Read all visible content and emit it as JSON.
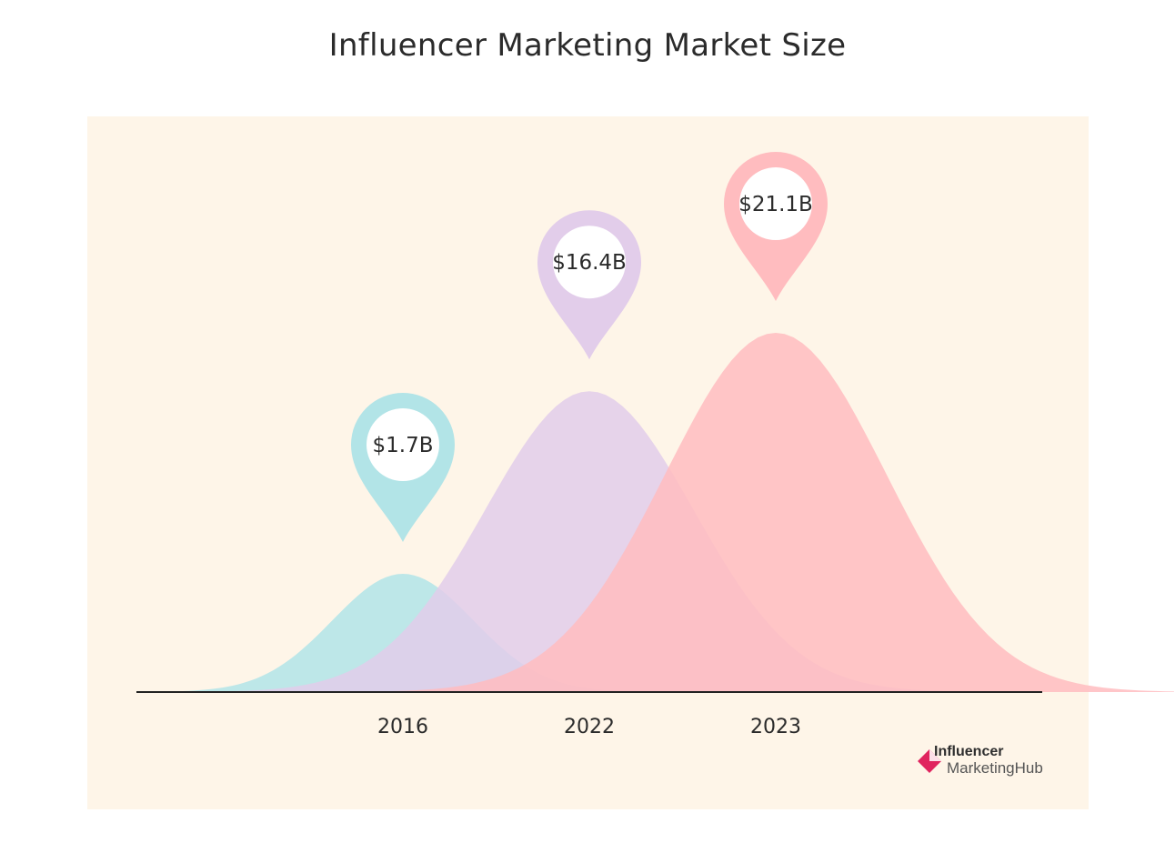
{
  "chart_data": {
    "type": "area",
    "title": "Influencer Marketing Market Size",
    "categories": [
      "2016",
      "2022",
      "2023"
    ],
    "values": [
      1.7,
      16.4,
      21.1
    ],
    "value_labels": [
      "$1.7B",
      "$16.4B",
      "$21.1B"
    ],
    "unit": "USD billions",
    "colors": [
      "#b2e4e7",
      "#e2cdea",
      "#ffbcbf"
    ],
    "pin_colors": [
      "#b2e4e7",
      "#e2cdea",
      "#ffbcbf"
    ],
    "background": "#fef5e8"
  },
  "brand": {
    "line1": "Influencer",
    "line2": "MarketingHub",
    "color": "#e0245e"
  }
}
